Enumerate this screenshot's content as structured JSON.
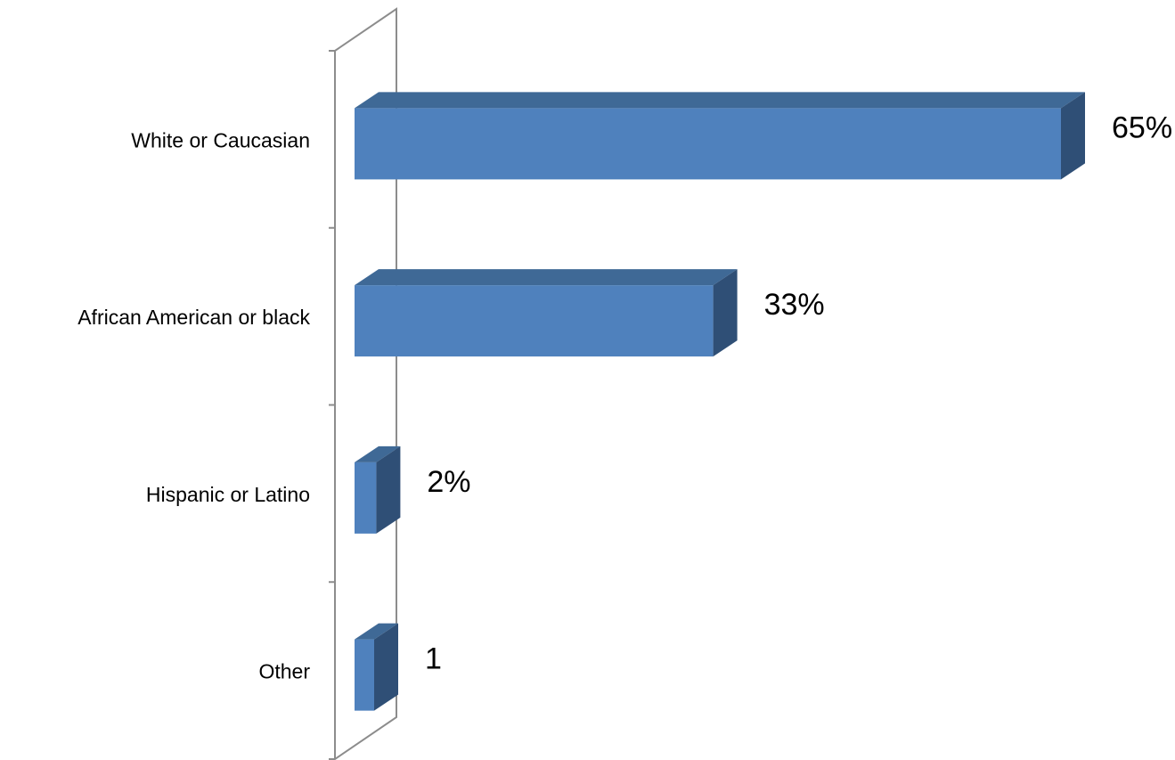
{
  "chart_data": {
    "type": "bar",
    "orientation": "horizontal",
    "style": "3d",
    "categories": [
      "White or Caucasian",
      "African American or black",
      "Hispanic or Latino",
      "Other"
    ],
    "values": [
      65,
      33,
      2,
      1
    ],
    "data_labels": [
      "65%",
      "33%",
      "2%",
      "1"
    ],
    "title": "",
    "xlabel": "",
    "ylabel": "",
    "xlim": [
      0,
      65
    ],
    "grid": false,
    "legend": "none",
    "colors": {
      "bar_front": "#4f81bd",
      "bar_top": "#3f6996",
      "bar_side": "#2f4f76",
      "axis": "#8c8c8c"
    }
  }
}
